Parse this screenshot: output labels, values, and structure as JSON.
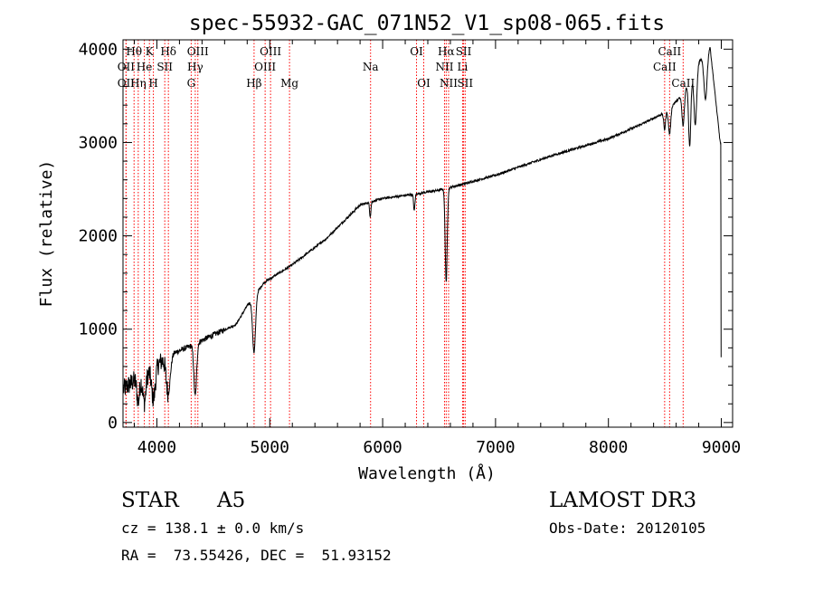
{
  "chart_data": {
    "type": "line",
    "title": "spec-55932-GAC_071N52_V1_sp08-065.fits",
    "xlabel": "Wavelength (Å)",
    "ylabel": "Flux (relative)",
    "xlim": [
      3700,
      9100
    ],
    "ylim": [
      -50,
      4100
    ],
    "x_ticks": [
      4000,
      5000,
      6000,
      7000,
      8000,
      9000
    ],
    "y_ticks": [
      0,
      1000,
      2000,
      3000,
      4000
    ],
    "x_tick_labels": [
      "4000",
      "5000",
      "6000",
      "7000",
      "8000",
      "9000"
    ],
    "y_tick_labels": [
      "0",
      "1000",
      "2000",
      "3000",
      "4000"
    ],
    "line_color": "#ff0000",
    "spectrum_color": "#000000",
    "continuum_anchors": {
      "x": [
        3700,
        3800,
        3950,
        4100,
        4300,
        4500,
        4700,
        4800,
        4950,
        5200,
        5500,
        5800,
        6000,
        6300,
        6500,
        6700,
        7000,
        7500,
        8000,
        8300,
        8500,
        8650,
        8800,
        8900,
        8990
      ],
      "y": [
        350,
        450,
        560,
        720,
        820,
        940,
        1050,
        1250,
        1500,
        1690,
        1970,
        2330,
        2400,
        2450,
        2490,
        2550,
        2650,
        2860,
        3040,
        3200,
        3320,
        3500,
        3860,
        4030,
        3000
      ]
    },
    "absorption_features": [
      {
        "center": 3835,
        "depth": 250,
        "width": 12
      },
      {
        "center": 3889,
        "depth": 300,
        "width": 14
      },
      {
        "center": 3970,
        "depth": 330,
        "width": 16
      },
      {
        "center": 4101,
        "depth": 400,
        "width": 18
      },
      {
        "center": 4340,
        "depth": 560,
        "width": 12
      },
      {
        "center": 4861,
        "depth": 600,
        "width": 13
      },
      {
        "center": 5890,
        "depth": 150,
        "width": 6
      },
      {
        "center": 6280,
        "depth": 180,
        "width": 6
      },
      {
        "center": 6563,
        "depth": 1000,
        "width": 9
      },
      {
        "center": 8498,
        "depth": 180,
        "width": 8
      },
      {
        "center": 8542,
        "depth": 280,
        "width": 10
      },
      {
        "center": 8662,
        "depth": 350,
        "width": 10
      },
      {
        "center": 8720,
        "depth": 700,
        "width": 10
      },
      {
        "center": 8770,
        "depth": 600,
        "width": 12
      },
      {
        "center": 8860,
        "depth": 500,
        "width": 14
      }
    ],
    "spectral_lines": [
      {
        "label": "Hθ",
        "wave": 3798,
        "row": 1
      },
      {
        "label": "OII",
        "wave": 3727,
        "row": 2
      },
      {
        "label": "OII",
        "wave": 3727,
        "row": 3
      },
      {
        "label": "He",
        "wave": 3889,
        "row": 2
      },
      {
        "label": "Hη",
        "wave": 3835,
        "row": 3
      },
      {
        "label": "K",
        "wave": 3934,
        "row": 1
      },
      {
        "label": "SII",
        "wave": 4070,
        "row": 2
      },
      {
        "label": "H",
        "wave": 3969,
        "row": 3
      },
      {
        "label": "Hδ",
        "wave": 4102,
        "row": 1
      },
      {
        "label": "OIII",
        "wave": 4363,
        "row": 1
      },
      {
        "label": "Hγ",
        "wave": 4340,
        "row": 2
      },
      {
        "label": "G",
        "wave": 4304,
        "row": 3
      },
      {
        "label": "Hβ",
        "wave": 4861,
        "row": 3
      },
      {
        "label": "OIII",
        "wave": 5007,
        "row": 1
      },
      {
        "label": "OIII",
        "wave": 4959,
        "row": 2
      },
      {
        "label": "Mg",
        "wave": 5175,
        "row": 3
      },
      {
        "label": "Na",
        "wave": 5893,
        "row": 2
      },
      {
        "label": "OI",
        "wave": 6300,
        "row": 1
      },
      {
        "label": "OI",
        "wave": 6364,
        "row": 3
      },
      {
        "label": "Hα",
        "wave": 6563,
        "row": 1
      },
      {
        "label": "NII",
        "wave": 6548,
        "row": 2
      },
      {
        "label": "NII",
        "wave": 6584,
        "row": 3
      },
      {
        "label": "SII",
        "wave": 6717,
        "row": 1
      },
      {
        "label": "Li",
        "wave": 6708,
        "row": 2
      },
      {
        "label": "SII",
        "wave": 6731,
        "row": 3
      },
      {
        "label": "CaII",
        "wave": 8542,
        "row": 1
      },
      {
        "label": "CaII",
        "wave": 8498,
        "row": 2
      },
      {
        "label": "CaII",
        "wave": 8662,
        "row": 3
      }
    ]
  },
  "info": {
    "object_class": "STAR",
    "subclass": "A5",
    "survey": "LAMOST DR3",
    "redshift": "cz = 138.1 ± 0.0 km/s",
    "obs_date": "Obs-Date: 20120105",
    "coords": "RA =  73.55426, DEC =  51.93152"
  }
}
